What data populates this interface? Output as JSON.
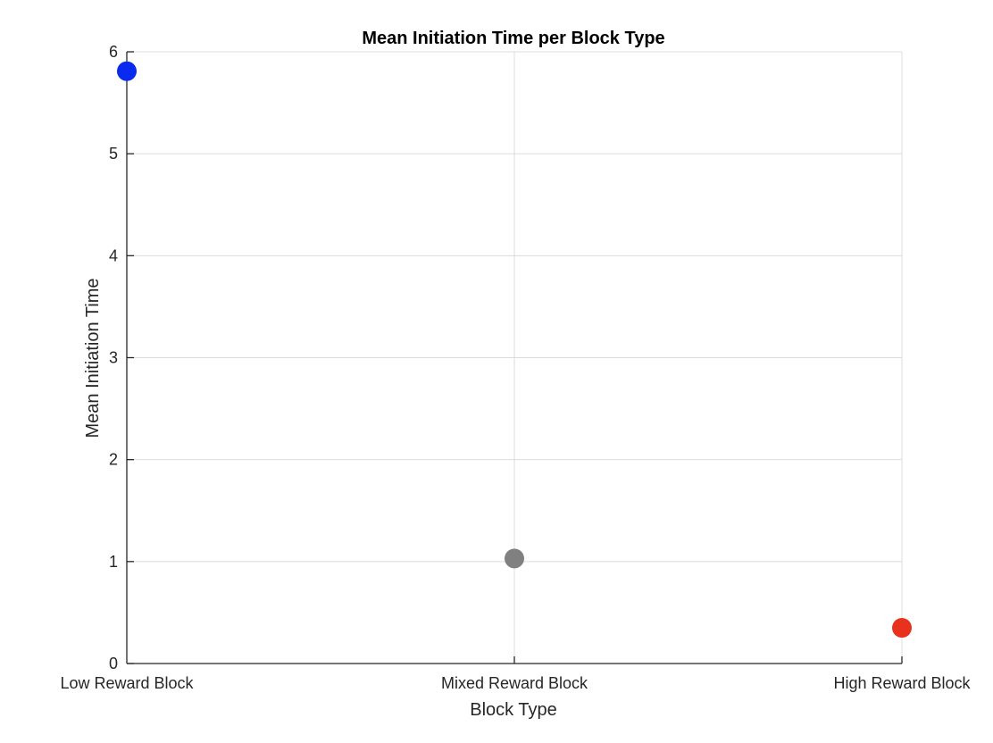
{
  "chart_data": {
    "type": "scatter",
    "title": "Mean Initiation Time per Block Type",
    "xlabel": "Block Type",
    "ylabel": "Mean Initiation Time",
    "categories": [
      "Low Reward Block",
      "Mixed Reward Block",
      "High Reward Block"
    ],
    "values": [
      5.81,
      1.03,
      0.35
    ],
    "point_colors": [
      "#0a2af0",
      "#808080",
      "#e8321e"
    ],
    "ylim": [
      0,
      6
    ],
    "yticks": [
      "0",
      "1",
      "2",
      "3",
      "4",
      "5",
      "6"
    ],
    "grid": true
  }
}
